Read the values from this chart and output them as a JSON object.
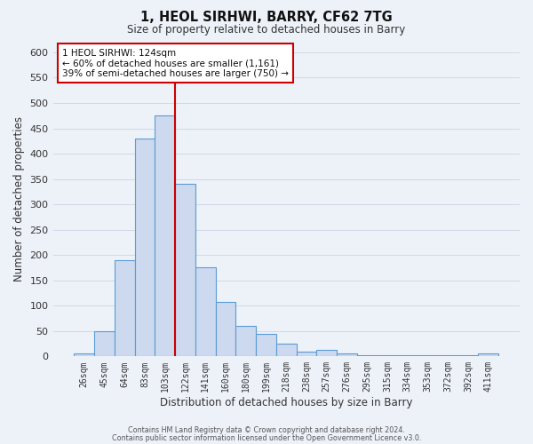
{
  "title": "1, HEOL SIRHWI, BARRY, CF62 7TG",
  "subtitle": "Size of property relative to detached houses in Barry",
  "xlabel": "Distribution of detached houses by size in Barry",
  "ylabel": "Number of detached properties",
  "bar_labels": [
    "26sqm",
    "45sqm",
    "64sqm",
    "83sqm",
    "103sqm",
    "122sqm",
    "141sqm",
    "160sqm",
    "180sqm",
    "199sqm",
    "218sqm",
    "238sqm",
    "257sqm",
    "276sqm",
    "295sqm",
    "315sqm",
    "334sqm",
    "353sqm",
    "372sqm",
    "392sqm",
    "411sqm"
  ],
  "bar_heights": [
    5,
    50,
    190,
    430,
    475,
    340,
    175,
    108,
    60,
    44,
    25,
    10,
    12,
    5,
    3,
    2,
    2,
    2,
    2,
    2,
    5
  ],
  "bar_color": "#ccd9ee",
  "bar_edge_color": "#5b9bd5",
  "vline_x": 4.5,
  "vline_color": "#cc0000",
  "ylim": [
    0,
    620
  ],
  "yticks": [
    0,
    50,
    100,
    150,
    200,
    250,
    300,
    350,
    400,
    450,
    500,
    550,
    600
  ],
  "annotation_title": "1 HEOL SIRHWI: 124sqm",
  "annotation_line1": "← 60% of detached houses are smaller (1,161)",
  "annotation_line2": "39% of semi-detached houses are larger (750) →",
  "annotation_box_color": "#ffffff",
  "annotation_box_edge": "#cc0000",
  "grid_color": "#d0d8e8",
  "bg_color": "#edf2f9",
  "footer1": "Contains HM Land Registry data © Crown copyright and database right 2024.",
  "footer2": "Contains public sector information licensed under the Open Government Licence v3.0."
}
